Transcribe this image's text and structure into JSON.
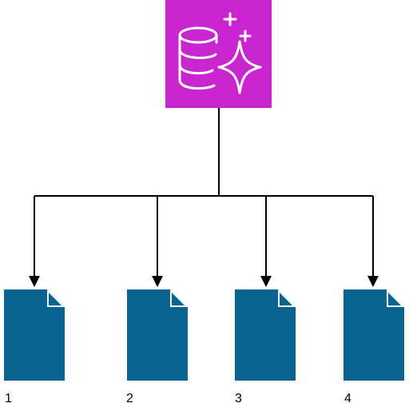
{
  "colors": {
    "database_tile": "#c925d1",
    "document": "#0b6391",
    "connector": "#000000",
    "icon_stroke": "#ffffff"
  },
  "icons": {
    "database": "database-sparkle-icon",
    "document": "document-icon"
  },
  "documents": [
    {
      "label": "1"
    },
    {
      "label": "2"
    },
    {
      "label": "3"
    },
    {
      "label": "4"
    }
  ]
}
